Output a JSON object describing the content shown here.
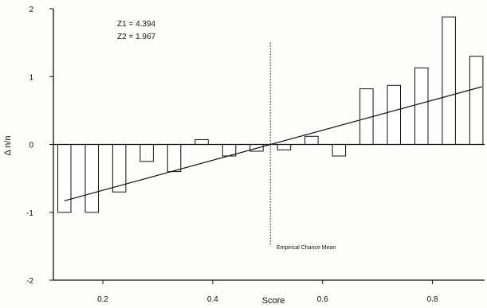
{
  "chart_data": {
    "type": "bar",
    "title": "",
    "xlabel": "Score",
    "ylabel": "Δ n/n",
    "xlim": [
      0.11,
      0.895
    ],
    "ylim": [
      -2,
      2
    ],
    "x_ticks": [
      {
        "value": 0.2,
        "label": "0.2"
      },
      {
        "value": 0.4,
        "label": "0.4"
      },
      {
        "value": 0.6,
        "label": "0.6"
      },
      {
        "value": 0.8,
        "label": "0.8"
      }
    ],
    "y_ticks": [
      {
        "value": 2,
        "label": "2"
      },
      {
        "value": 1,
        "label": "1"
      },
      {
        "value": 0,
        "label": "0"
      },
      {
        "value": -1,
        "label": "-1"
      },
      {
        "value": -2,
        "label": "-2"
      }
    ],
    "bar_width": 0.024,
    "bars": [
      {
        "x": 0.13,
        "value": -1.0
      },
      {
        "x": 0.18,
        "value": -1.0
      },
      {
        "x": 0.23,
        "value": -0.7
      },
      {
        "x": 0.28,
        "value": -0.25
      },
      {
        "x": 0.33,
        "value": -0.4
      },
      {
        "x": 0.38,
        "value": 0.07
      },
      {
        "x": 0.43,
        "value": -0.17
      },
      {
        "x": 0.48,
        "value": -0.1
      },
      {
        "x": 0.53,
        "value": -0.08
      },
      {
        "x": 0.58,
        "value": 0.12
      },
      {
        "x": 0.63,
        "value": -0.17
      },
      {
        "x": 0.68,
        "value": 0.82
      },
      {
        "x": 0.73,
        "value": 0.87
      },
      {
        "x": 0.78,
        "value": 1.13
      },
      {
        "x": 0.83,
        "value": 1.88
      },
      {
        "x": 0.88,
        "value": 1.3
      }
    ],
    "regression_line": [
      {
        "x": 0.13,
        "y": -0.83
      },
      {
        "x": 0.89,
        "y": 0.85
      }
    ],
    "annotations": {
      "z1": "Z1 = 4.394",
      "z2": "Z2 = 1.967",
      "chance_mean_label": "Empirical Chance Mean"
    },
    "chance_mean_x": 0.505,
    "chance_mean_y_range": [
      -1.5,
      1.5
    ],
    "grid": false,
    "legend": "none",
    "bar_fill": "#ffffff",
    "ink_color": "#111111"
  }
}
